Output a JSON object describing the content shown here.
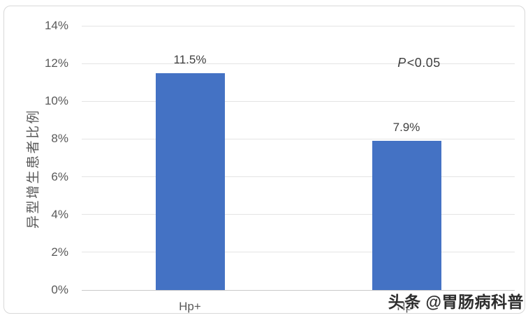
{
  "watermark": "头条 @胃肠病科普",
  "chart_data": {
    "type": "bar",
    "categories": [
      "Hp+",
      "Hp-"
    ],
    "values": [
      11.5,
      7.9
    ],
    "value_labels": [
      "11.5%",
      "7.9%"
    ],
    "xlabel": "",
    "ylabel": "异型增生患者比例",
    "ylim": [
      0,
      14
    ],
    "ytick_step": 2,
    "ytick_labels": [
      "0%",
      "2%",
      "4%",
      "6%",
      "8%",
      "10%",
      "12%",
      "14%"
    ],
    "grid": true,
    "legend_position": "none",
    "bar_color": "#4472C4",
    "annotation": {
      "p": "P",
      "rest": "<0.05"
    }
  },
  "colors": {
    "bar": "#4472C4",
    "gridline": "#e4e4e4",
    "axis_line": "#c9c9c9",
    "tick_text": "#595959",
    "label_text": "#3f3f3f",
    "card_border": "#d8d8d8",
    "watermark_text": "#2d2d2d"
  }
}
